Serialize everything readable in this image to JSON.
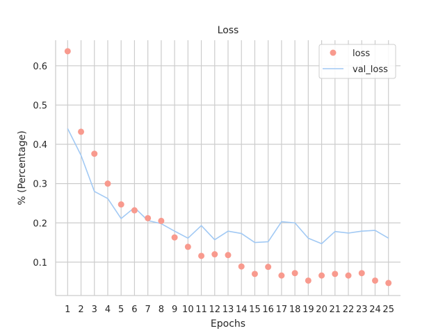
{
  "chart_data": {
    "type": "scatter",
    "title": "Loss",
    "xlabel": "Epochs",
    "ylabel": "% (Percentage)",
    "x": [
      1,
      2,
      3,
      4,
      5,
      6,
      7,
      8,
      9,
      10,
      11,
      12,
      13,
      14,
      15,
      16,
      17,
      18,
      19,
      20,
      21,
      22,
      23,
      24,
      25
    ],
    "xlim": [
      0.1,
      25.9
    ],
    "ylim": [
      0.015,
      0.665
    ],
    "yticks": [
      0.1,
      0.2,
      0.3,
      0.4,
      0.5,
      0.6
    ],
    "ytick_labels": [
      "0.1",
      "0.2",
      "0.3",
      "0.4",
      "0.5",
      "0.6"
    ],
    "xtick_labels": [
      "1",
      "2",
      "3",
      "4",
      "5",
      "6",
      "7",
      "8",
      "9",
      "10",
      "11",
      "12",
      "13",
      "14",
      "15",
      "16",
      "17",
      "18",
      "19",
      "20",
      "21",
      "22",
      "23",
      "24",
      "25"
    ],
    "grid": true,
    "legend_position": "upper right",
    "series": [
      {
        "name": "loss",
        "kind": "scatter",
        "color": "#f89a8e",
        "values": [
          0.637,
          0.432,
          0.376,
          0.3,
          0.247,
          0.232,
          0.212,
          0.205,
          0.163,
          0.139,
          0.116,
          0.12,
          0.118,
          0.089,
          0.07,
          0.088,
          0.066,
          0.072,
          0.053,
          0.066,
          0.07,
          0.066,
          0.072,
          0.053,
          0.047
        ]
      },
      {
        "name": "val_loss",
        "kind": "line",
        "color": "#a1c9f4",
        "values": [
          0.44,
          0.372,
          0.28,
          0.262,
          0.211,
          0.239,
          0.206,
          0.198,
          0.179,
          0.161,
          0.193,
          0.157,
          0.179,
          0.173,
          0.15,
          0.152,
          0.203,
          0.2,
          0.161,
          0.147,
          0.178,
          0.174,
          0.179,
          0.181,
          0.161
        ]
      }
    ]
  }
}
